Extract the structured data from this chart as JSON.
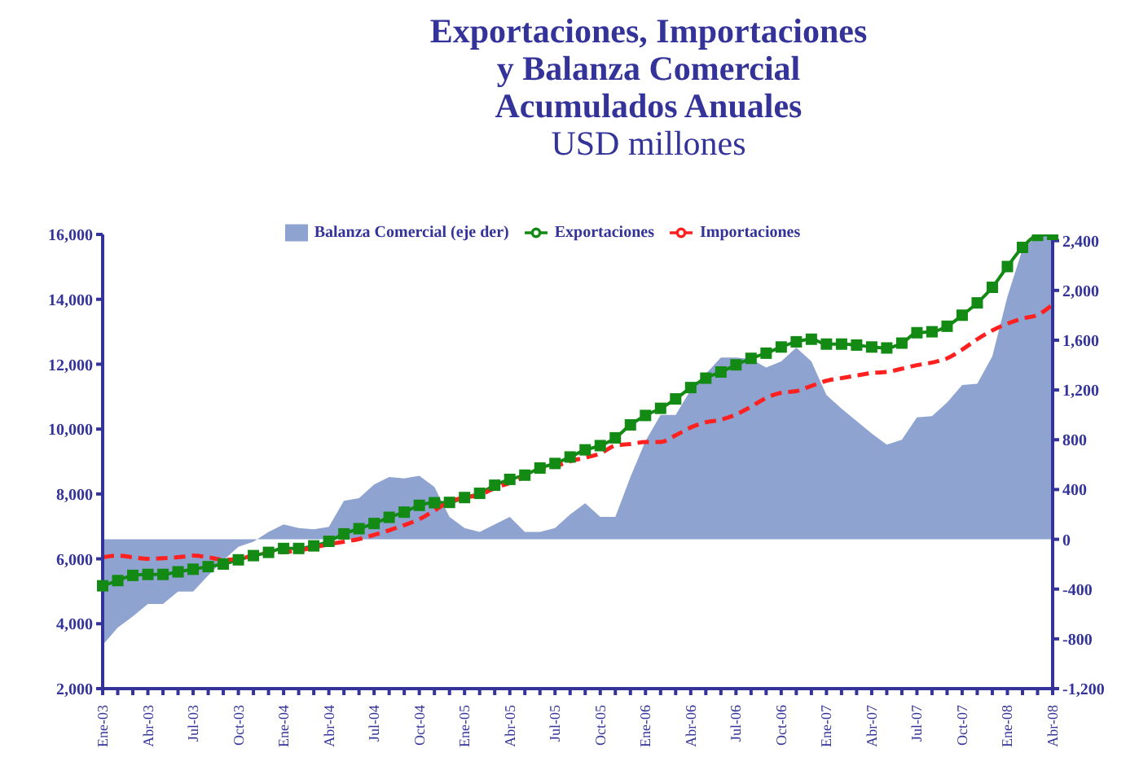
{
  "chart_data": {
    "type": "line",
    "title": "Exportaciones, Importaciones\ny Balanza Comercial\nAcumulados Anuales",
    "subtitle": "USD millones",
    "categories": [
      "Ene-03",
      null,
      null,
      "Abr-03",
      null,
      null,
      "Jul-03",
      null,
      null,
      "Oct-03",
      null,
      null,
      "Ene-04",
      null,
      null,
      "Abr-04",
      null,
      null,
      "Jul-04",
      null,
      null,
      "Oct-04",
      null,
      null,
      "Ene-05",
      null,
      null,
      "Abr-05",
      null,
      null,
      "Jul-05",
      null,
      null,
      "Oct-05",
      null,
      null,
      "Ene-06",
      null,
      null,
      "Abr-06",
      null,
      null,
      "Jul-06",
      null,
      null,
      "Oct-06",
      null,
      null,
      "Ene-07",
      null,
      null,
      "Abr-07",
      null,
      null,
      "Jul-07",
      null,
      null,
      "Oct-07",
      null,
      null,
      "Ene-08",
      null,
      null,
      "Abr-08"
    ],
    "series": [
      {
        "name": "Balanza Comercial (eje der)",
        "type": "area",
        "axis": "y2",
        "color": "#8ea3d0",
        "values": [
          -850,
          -710,
          -620,
          -520,
          -520,
          -420,
          -420,
          -290,
          -170,
          -60,
          -20,
          60,
          120,
          90,
          80,
          100,
          310,
          330,
          440,
          500,
          490,
          510,
          420,
          180,
          90,
          60,
          120,
          180,
          60,
          60,
          90,
          200,
          290,
          180,
          180,
          500,
          790,
          1000,
          1000,
          1200,
          1330,
          1460,
          1460,
          1450,
          1380,
          1430,
          1540,
          1430,
          1160,
          1050,
          950,
          850,
          760,
          800,
          980,
          990,
          1100,
          1240,
          1250,
          1470,
          1950,
          2330,
          2440,
          2450
        ]
      },
      {
        "name": "Exportaciones",
        "color": "#138a13",
        "marker": "square",
        "line_style": "solid",
        "values": [
          5170,
          5330,
          5490,
          5520,
          5520,
          5600,
          5680,
          5760,
          5840,
          5970,
          6100,
          6200,
          6320,
          6320,
          6400,
          6540,
          6770,
          6930,
          7090,
          7280,
          7440,
          7650,
          7730,
          7740,
          7890,
          8020,
          8270,
          8450,
          8580,
          8800,
          8940,
          9140,
          9360,
          9490,
          9730,
          10130,
          10420,
          10640,
          10930,
          11280,
          11570,
          11760,
          11980,
          12180,
          12340,
          12530,
          12690,
          12770,
          12620,
          12620,
          12590,
          12530,
          12500,
          12650,
          12970,
          13000,
          13170,
          13510,
          13890,
          14370,
          15010,
          15600,
          15970,
          16000
        ]
      },
      {
        "name": "Importaciones",
        "color": "#ff2020",
        "marker": "none",
        "line_style": "dashed",
        "values": [
          6050,
          6100,
          6050,
          6000,
          6020,
          6050,
          6100,
          6050,
          5970,
          6000,
          6100,
          6180,
          6210,
          6260,
          6350,
          6450,
          6530,
          6610,
          6740,
          6880,
          7040,
          7220,
          7490,
          7760,
          7890,
          7970,
          8180,
          8340,
          8530,
          8740,
          8850,
          9010,
          9120,
          9250,
          9490,
          9540,
          9600,
          9600,
          9810,
          10050,
          10210,
          10290,
          10450,
          10690,
          10960,
          11120,
          11170,
          11330,
          11490,
          11570,
          11650,
          11730,
          11760,
          11860,
          11970,
          12050,
          12180,
          12450,
          12770,
          13040,
          13250,
          13410,
          13520,
          13840
        ]
      }
    ],
    "ylim": [
      2000,
      16000
    ],
    "yticks": [
      {
        "value": 2000,
        "label": "2,000"
      },
      {
        "value": 4000,
        "label": "4,000"
      },
      {
        "value": 6000,
        "label": "6,000"
      },
      {
        "value": 8000,
        "label": "8,000"
      },
      {
        "value": 10000,
        "label": "10,000"
      },
      {
        "value": 12000,
        "label": "12,000"
      },
      {
        "value": 14000,
        "label": "14,000"
      },
      {
        "value": 16000,
        "label": "16,000"
      }
    ],
    "y2lim": [
      -1200,
      2450
    ],
    "y2ticks": [
      {
        "value": -1200,
        "label": "-1,200"
      },
      -800,
      -400,
      0,
      400,
      800,
      {
        "value": 1200,
        "label": "1,200"
      },
      {
        "value": 1600,
        "label": "1,600"
      },
      {
        "value": 2000,
        "label": "2,000"
      },
      {
        "value": 2400,
        "label": "2,400"
      }
    ],
    "grid": false,
    "legend": "top"
  }
}
